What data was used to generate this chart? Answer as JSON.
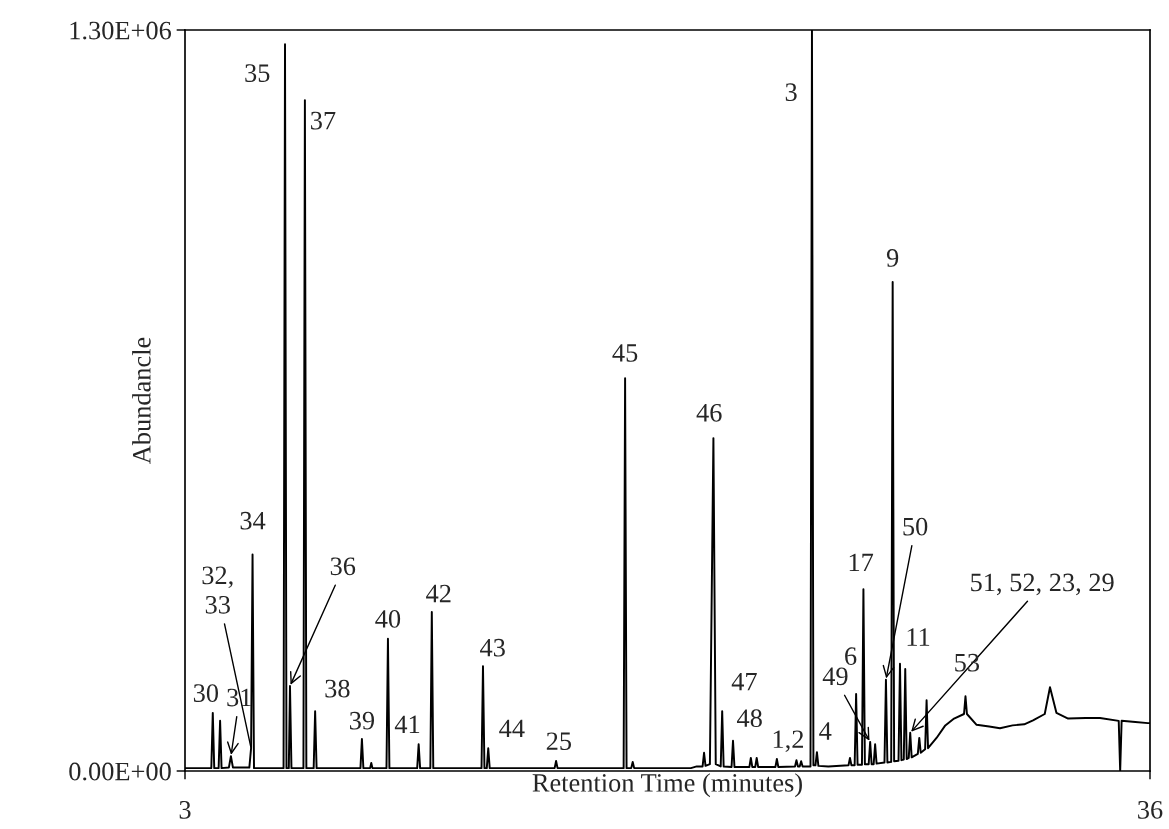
{
  "chart_data": {
    "type": "line",
    "xlabel": "Retention Time (minutes)",
    "ylabel": "Abundancle",
    "xlim": [
      3,
      36
    ],
    "xticks": [
      3,
      36
    ],
    "ylim": [
      0,
      1300000
    ],
    "yticks": [
      {
        "value": 0,
        "label": "0.00E+00"
      },
      {
        "value": 1300000,
        "label": "1.30E+06"
      }
    ],
    "grid": false,
    "series": [
      {
        "color": "#000000",
        "x": [
          3.0,
          3.9,
          3.95,
          4.0,
          4.15,
          4.2,
          4.25,
          4.5,
          4.57,
          4.64,
          5.2,
          5.26,
          5.31,
          5.36,
          6.37,
          6.42,
          6.47,
          6.55,
          6.59,
          6.64,
          7.05,
          7.1,
          7.15,
          7.4,
          7.45,
          7.5,
          9.0,
          9.05,
          9.1,
          9.33,
          9.37,
          9.41,
          9.89,
          9.94,
          9.99,
          10.94,
          10.99,
          11.04,
          11.39,
          11.44,
          11.49,
          13.14,
          13.19,
          13.24,
          13.32,
          13.37,
          13.42,
          15.64,
          15.69,
          15.74,
          18.0,
          18.05,
          18.1,
          18.26,
          18.31,
          18.36,
          20.3,
          20.5,
          20.7,
          20.75,
          20.8,
          20.95,
          21.07,
          21.15,
          21.32,
          21.37,
          21.42,
          21.69,
          21.74,
          21.79,
          22.3,
          22.35,
          22.4,
          22.5,
          22.55,
          22.6,
          23.19,
          23.24,
          23.29,
          23.86,
          23.91,
          23.96,
          24.02,
          24.07,
          24.12,
          24.39,
          24.44,
          24.49,
          24.56,
          24.61,
          24.66,
          25.0,
          25.69,
          25.74,
          25.79,
          25.9,
          25.95,
          26.0,
          26.15,
          26.2,
          26.25,
          26.38,
          26.43,
          26.48,
          26.55,
          26.6,
          26.65,
          26.92,
          26.97,
          27.02,
          27.15,
          27.2,
          27.25,
          27.4,
          27.45,
          27.5,
          27.58,
          27.63,
          27.68,
          27.75,
          27.8,
          27.85,
          28.06,
          28.11,
          28.16,
          28.31,
          28.36,
          28.41,
          28.7,
          29.0,
          29.3,
          29.64,
          29.69,
          29.74,
          30.07,
          30.5,
          30.87,
          31.3,
          31.7,
          32.0,
          32.4,
          32.58,
          32.8,
          33.2,
          33.8,
          34.29,
          34.93,
          34.98,
          35.03,
          35.5,
          35.93,
          36.0
        ],
        "values": [
          5000,
          5000,
          102000,
          5000,
          5000,
          88000,
          5000,
          6000,
          26000,
          6000,
          6000,
          40000,
          380000,
          5000,
          5000,
          1275000,
          5000,
          5000,
          149000,
          5000,
          5000,
          1177000,
          5000,
          5000,
          105000,
          5000,
          5000,
          56000,
          5000,
          5000,
          14000,
          5000,
          5000,
          232000,
          5000,
          5000,
          47000,
          5000,
          5000,
          279000,
          5000,
          5000,
          184000,
          5000,
          5000,
          40000,
          5000,
          5000,
          17500,
          5000,
          5000,
          689000,
          5000,
          5000,
          16000,
          5000,
          5000,
          8000,
          8000,
          32000,
          9000,
          12000,
          584000,
          12000,
          8000,
          105000,
          8000,
          7000,
          53000,
          7000,
          7000,
          23000,
          7000,
          7000,
          23000,
          7000,
          7000,
          21000,
          7000,
          8000,
          19000,
          8000,
          8000,
          17000,
          8000,
          8000,
          1300000,
          10000,
          10000,
          33000,
          9000,
          8000,
          10000,
          23000,
          10000,
          10000,
          135000,
          11000,
          11000,
          319000,
          12000,
          12000,
          51000,
          12000,
          12000,
          47000,
          13000,
          15000,
          160000,
          15000,
          16000,
          858000,
          17000,
          18000,
          188000,
          19000,
          20000,
          179000,
          21000,
          23000,
          67000,
          24000,
          30000,
          58000,
          32000,
          38000,
          124000,
          40000,
          58000,
          80000,
          92000,
          100000,
          131000,
          100000,
          81000,
          78000,
          75000,
          80000,
          82000,
          89000,
          100000,
          147000,
          102000,
          92000,
          93000,
          93000,
          88000,
          0,
          88000,
          86000,
          84000,
          84000
        ]
      }
    ],
    "annotations": [
      {
        "text": "30",
        "x": 3.95,
        "y": 102000
      },
      {
        "text": "31",
        "x": 4.57,
        "y": 26000
      },
      {
        "text": "32,\n33",
        "x": 5.26,
        "y": 40000
      },
      {
        "text": "34",
        "x": 5.31,
        "y": 380000
      },
      {
        "text": "35",
        "x": 6.42,
        "y": 1275000
      },
      {
        "text": "36",
        "x": 6.59,
        "y": 149000
      },
      {
        "text": "37",
        "x": 7.1,
        "y": 1177000
      },
      {
        "text": "38",
        "x": 7.45,
        "y": 105000
      },
      {
        "text": "39",
        "x": 9.05,
        "y": 56000
      },
      {
        "text": "40",
        "x": 9.94,
        "y": 232000
      },
      {
        "text": "41",
        "x": 10.99,
        "y": 47000
      },
      {
        "text": "42",
        "x": 11.44,
        "y": 279000
      },
      {
        "text": "43",
        "x": 13.19,
        "y": 184000
      },
      {
        "text": "44",
        "x": 13.37,
        "y": 40000
      },
      {
        "text": "25",
        "x": 15.69,
        "y": 17500
      },
      {
        "text": "45",
        "x": 18.05,
        "y": 689000
      },
      {
        "text": "46",
        "x": 21.07,
        "y": 584000
      },
      {
        "text": "47",
        "x": 21.37,
        "y": 105000
      },
      {
        "text": "48",
        "x": 21.74,
        "y": 53000
      },
      {
        "text": "1,2",
        "x": 23.24,
        "y": 21000
      },
      {
        "text": "3",
        "x": 24.44,
        "y": 1300000
      },
      {
        "text": "4",
        "x": 24.61,
        "y": 33000
      },
      {
        "text": "49",
        "x": 26.43,
        "y": 51000
      },
      {
        "text": "6",
        "x": 25.95,
        "y": 135000
      },
      {
        "text": "17",
        "x": 26.2,
        "y": 319000
      },
      {
        "text": "50",
        "x": 26.97,
        "y": 160000
      },
      {
        "text": "9",
        "x": 27.2,
        "y": 858000
      },
      {
        "text": "11",
        "x": 27.45,
        "y": 188000
      },
      {
        "text": "51, 52, 23, 29",
        "x": 27.8,
        "y": 67000
      },
      {
        "text": "53",
        "x": 29.69,
        "y": 131000
      }
    ]
  }
}
